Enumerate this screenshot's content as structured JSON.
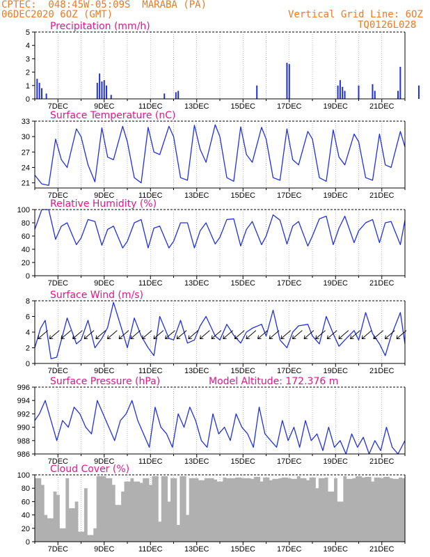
{
  "header": {
    "line1": "CPTEC:  048:45W-05:09S  MARABA (PA)",
    "line2": "06DEC2020 6OZ (GMT)",
    "right1": "Vertical Grid Line: 6OZ",
    "right2": "TQ0126L028",
    "color": "#f07820"
  },
  "colors": {
    "title": "#e0178c",
    "line": "#2030e0",
    "cloud": "#b0b0b0",
    "grid": "#888888"
  },
  "chart_data": [
    {
      "type": "bar",
      "title": "Precipitation (mm/h)",
      "x_ticks": [
        "7DEC",
        "9DEC",
        "11DEC",
        "13DEC",
        "15DEC",
        "17DEC",
        "19DEC",
        "21DEC"
      ],
      "ylim": [
        0,
        5
      ],
      "y_ticks": [
        0,
        1,
        2,
        3,
        4,
        5
      ],
      "x": [
        0.1,
        0.2,
        0.3,
        0.5,
        2.7,
        2.8,
        2.9,
        3.0,
        3.1,
        3.3,
        5.6,
        6.1,
        6.2,
        9.6,
        10.9,
        11.0,
        13.1,
        13.2,
        13.3,
        13.4,
        14.0,
        14.6,
        14.7,
        15.7,
        15.8,
        16.6,
        17.3,
        17.4,
        17.5,
        17.6
      ],
      "values": [
        1.5,
        1.2,
        0.8,
        0.4,
        1.2,
        1.9,
        1.3,
        1.4,
        1.0,
        0.3,
        0.4,
        0.5,
        0.6,
        1.0,
        2.7,
        2.6,
        1.0,
        1.4,
        0.9,
        0.6,
        1.0,
        1.1,
        0.6,
        0.6,
        2.4,
        1.0,
        0.8,
        1.8,
        1.3,
        1.1
      ]
    },
    {
      "type": "line",
      "title": "Surface Temperature (nC)",
      "x_ticks": [
        "7DEC",
        "9DEC",
        "11DEC",
        "13DEC",
        "15DEC",
        "17DEC",
        "19DEC",
        "21DEC"
      ],
      "ylim": [
        20,
        33
      ],
      "y_ticks": [
        21,
        24,
        27,
        30,
        33
      ],
      "x": [
        0,
        0.3,
        0.6,
        0.9,
        1.15,
        1.4,
        1.8,
        2.0,
        2.3,
        2.6,
        2.9,
        3.15,
        3.4,
        3.8,
        4.0,
        4.3,
        4.6,
        4.9,
        5.15,
        5.4,
        5.8,
        6.0,
        6.3,
        6.6,
        6.9,
        7.15,
        7.4,
        7.8,
        8.0,
        8.3,
        8.6,
        8.9,
        9.15,
        9.4,
        9.8,
        10.0,
        10.3,
        10.6,
        10.9,
        11.15,
        11.4,
        11.8,
        12.0,
        12.3,
        12.6,
        12.9,
        13.15,
        13.4,
        13.8,
        14.0,
        14.3,
        14.6,
        14.9,
        15.15,
        15.4,
        15.8,
        16.0
      ],
      "values": [
        22.5,
        20.8,
        20.5,
        29.5,
        25.5,
        24.0,
        31.5,
        30.0,
        24.5,
        21.2,
        31.7,
        26.0,
        25.5,
        32.0,
        29.0,
        22.0,
        21.0,
        31.8,
        27.0,
        26.5,
        32.0,
        30.0,
        22.0,
        21.5,
        32.2,
        27.5,
        25.0,
        32.3,
        30.0,
        22.0,
        21.3,
        31.9,
        26.5,
        25.0,
        31.8,
        29.5,
        22.0,
        21.5,
        31.5,
        25.5,
        24.5,
        31.0,
        29.5,
        22.0,
        21.3,
        31.3,
        26.0,
        24.5,
        30.5,
        29.0,
        22.0,
        21.5,
        30.5,
        24.5,
        24.0,
        31.0,
        28.0
      ]
    },
    {
      "type": "line",
      "title": "Relative Humidity (%)",
      "x_ticks": [
        "7DEC",
        "9DEC",
        "11DEC",
        "13DEC",
        "15DEC",
        "17DEC",
        "19DEC",
        "21DEC"
      ],
      "ylim": [
        0,
        100
      ],
      "y_ticks": [
        0,
        20,
        40,
        60,
        80,
        100
      ],
      "x": [
        0,
        0.3,
        0.6,
        0.9,
        1.15,
        1.4,
        1.8,
        2.0,
        2.3,
        2.6,
        2.9,
        3.15,
        3.4,
        3.8,
        4.0,
        4.3,
        4.6,
        4.9,
        5.15,
        5.4,
        5.8,
        6.0,
        6.3,
        6.6,
        6.9,
        7.15,
        7.4,
        7.8,
        8.0,
        8.3,
        8.6,
        8.9,
        9.15,
        9.4,
        9.8,
        10.0,
        10.3,
        10.6,
        10.9,
        11.15,
        11.4,
        11.8,
        12.0,
        12.3,
        12.6,
        12.9,
        13.15,
        13.4,
        13.8,
        14.0,
        14.3,
        14.6,
        14.9,
        15.15,
        15.4,
        15.8,
        16.0
      ],
      "values": [
        70,
        100,
        100,
        55,
        75,
        80,
        47,
        57,
        85,
        82,
        46,
        70,
        75,
        42,
        52,
        80,
        85,
        42,
        72,
        75,
        42,
        52,
        80,
        80,
        42,
        68,
        80,
        48,
        58,
        85,
        86,
        45,
        70,
        82,
        47,
        60,
        92,
        84,
        48,
        75,
        82,
        45,
        60,
        86,
        90,
        47,
        72,
        90,
        50,
        68,
        80,
        85,
        50,
        80,
        82,
        47,
        84
      ]
    },
    {
      "type": "line",
      "title": "Surface Wind (m/s)",
      "x_ticks": [
        "7DEC",
        "9DEC",
        "11DEC",
        "13DEC",
        "15DEC",
        "17DEC",
        "19DEC",
        "21DEC"
      ],
      "ylim": [
        0,
        8
      ],
      "y_ticks": [
        0,
        2,
        4,
        6,
        8
      ],
      "x": [
        0,
        0.25,
        0.45,
        0.7,
        0.95,
        1.15,
        1.4,
        1.8,
        2.0,
        2.3,
        2.6,
        2.9,
        3.15,
        3.4,
        3.8,
        4.0,
        4.3,
        4.6,
        4.9,
        5.15,
        5.4,
        5.8,
        6.0,
        6.3,
        6.6,
        6.9,
        7.15,
        7.4,
        7.8,
        8.0,
        8.3,
        8.6,
        8.9,
        9.15,
        9.4,
        9.8,
        10.0,
        10.3,
        10.6,
        10.9,
        11.15,
        11.4,
        11.8,
        12.0,
        12.3,
        12.6,
        12.9,
        13.15,
        13.4,
        13.8,
        14.0,
        14.3,
        14.6,
        14.9,
        15.15,
        15.4,
        15.8,
        16.0
      ],
      "values": [
        2.0,
        4.5,
        5.5,
        0.6,
        0.8,
        3.0,
        5.8,
        2.5,
        3.0,
        5.5,
        2.0,
        3.2,
        4.6,
        7.8,
        4.0,
        2.0,
        5.8,
        3.5,
        2.0,
        1.0,
        6.0,
        3.2,
        3.0,
        5.5,
        2.6,
        3.0,
        4.8,
        6.0,
        3.5,
        3.0,
        5.0,
        3.6,
        2.6,
        4.0,
        4.5,
        5.0,
        3.5,
        6.8,
        3.0,
        2.0,
        4.0,
        4.8,
        5.0,
        3.5,
        2.5,
        6.0,
        3.8,
        2.2,
        3.0,
        4.2,
        3.0,
        6.5,
        3.8,
        2.5,
        1.0,
        3.5,
        6.5,
        2.5
      ]
    },
    {
      "type": "line",
      "title": "Surface Pressure (hPa)",
      "annotation": "Model Altitude: 172.376 m",
      "x_ticks": [
        "7DEC",
        "9DEC",
        "11DEC",
        "13DEC",
        "15DEC",
        "17DEC",
        "19DEC",
        "21DEC"
      ],
      "ylim": [
        986,
        996
      ],
      "y_ticks": [
        986,
        988,
        990,
        992,
        994,
        996
      ],
      "x": [
        0,
        0.2,
        0.45,
        0.7,
        0.95,
        1.2,
        1.45,
        1.7,
        1.95,
        2.2,
        2.45,
        2.7,
        2.95,
        3.2,
        3.45,
        3.7,
        3.95,
        4.2,
        4.45,
        4.7,
        4.95,
        5.2,
        5.45,
        5.7,
        5.95,
        6.2,
        6.45,
        6.7,
        6.95,
        7.2,
        7.45,
        7.7,
        7.95,
        8.2,
        8.45,
        8.7,
        8.95,
        9.2,
        9.45,
        9.7,
        9.95,
        10.2,
        10.45,
        10.7,
        10.95,
        11.2,
        11.45,
        11.7,
        11.95,
        12.2,
        12.45,
        12.7,
        12.95,
        13.2,
        13.45,
        13.7,
        13.95,
        14.2,
        14.45,
        14.7,
        14.95,
        15.2,
        15.45,
        15.7,
        16.0
      ],
      "values": [
        991,
        992,
        994,
        991,
        988,
        991,
        990,
        993,
        992,
        990,
        989,
        994,
        992,
        990,
        988,
        991,
        992,
        994,
        991,
        989,
        987,
        993,
        990,
        989,
        987,
        992,
        990,
        993,
        991,
        988,
        987,
        992,
        989,
        990,
        988,
        992,
        990,
        989,
        987,
        993,
        989,
        988,
        987,
        991,
        988,
        990,
        987,
        991,
        988,
        989,
        986.5,
        990,
        987,
        988,
        986,
        989,
        987,
        988.5,
        986,
        988,
        986.5,
        990,
        987,
        986,
        988
      ]
    },
    {
      "type": "area",
      "title": "Cloud Cover (%)",
      "x_ticks": [
        "7DEC",
        "9DEC",
        "11DEC",
        "13DEC",
        "15DEC",
        "17DEC",
        "19DEC",
        "21DEC"
      ],
      "ylim": [
        0,
        100
      ],
      "y_ticks": [
        0,
        20,
        40,
        60,
        80,
        100
      ],
      "x": [
        0,
        0.2,
        0.35,
        0.5,
        0.7,
        0.9,
        1.0,
        1.2,
        1.4,
        1.6,
        1.8,
        2.0,
        2.2,
        2.4,
        2.6,
        2.8,
        3.0,
        3.2,
        3.4,
        3.6,
        3.8,
        4.0,
        4.2,
        4.4,
        4.6,
        4.8,
        5.0,
        5.2,
        5.4,
        5.6,
        5.8,
        6.0,
        6.2,
        6.4,
        6.6,
        6.8,
        7.0,
        7.2,
        7.4,
        7.6,
        7.8,
        8.0,
        8.2,
        8.4,
        8.6,
        8.8,
        9.0,
        9.2,
        9.4,
        9.6,
        9.8,
        10.0,
        10.2,
        10.4,
        10.6,
        10.8,
        11.0,
        11.2,
        11.4,
        11.6,
        11.8,
        12.0,
        12.2,
        12.4,
        12.6,
        12.8,
        13.0,
        13.2,
        13.4,
        13.6,
        13.8,
        14.0,
        14.2,
        14.4,
        14.6,
        14.8,
        15.0,
        15.2,
        15.4,
        15.6,
        15.8,
        16.0
      ],
      "values": [
        95,
        85,
        40,
        35,
        75,
        70,
        20,
        95,
        50,
        60,
        15,
        80,
        10,
        20,
        98,
        98,
        95,
        85,
        55,
        75,
        90,
        95,
        90,
        88,
        95,
        85,
        98,
        30,
        98,
        60,
        95,
        25,
        98,
        40,
        95,
        95,
        92,
        95,
        95,
        93,
        90,
        96,
        95,
        95,
        96,
        95,
        95,
        94,
        97,
        90,
        96,
        92,
        94,
        95,
        96,
        95,
        94,
        98,
        95,
        92,
        96,
        80,
        95,
        96,
        75,
        95,
        60,
        98,
        94,
        95,
        98,
        96,
        97,
        90,
        96,
        95,
        97,
        95,
        94,
        96,
        95,
        98
      ]
    }
  ]
}
